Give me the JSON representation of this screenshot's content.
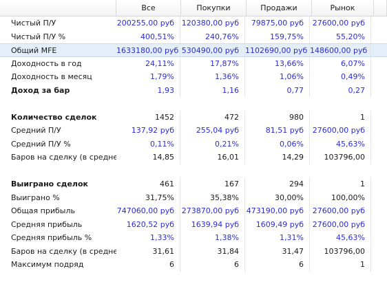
{
  "header": {
    "all": "Все",
    "buys": "Покупки",
    "sells": "Продажи",
    "market": "Рынок"
  },
  "rows": [
    {
      "label": "Чистый П/У",
      "vals": [
        "200255,00 руб",
        "120380,00 руб",
        "79875,00 руб",
        "27600,00 руб"
      ],
      "blue": true
    },
    {
      "label": "Чистый П/У %",
      "vals": [
        "400,51%",
        "240,76%",
        "159,75%",
        "55,20%"
      ],
      "blue": true
    },
    {
      "label": "Общий MFE",
      "vals": [
        "1633180,00 руб",
        "530490,00 руб",
        "1102690,00 руб",
        "148600,00 руб"
      ],
      "blue": true,
      "highlight": true
    },
    {
      "label": "Доходность в год",
      "vals": [
        "24,11%",
        "17,87%",
        "13,66%",
        "6,07%"
      ],
      "blue": true
    },
    {
      "label": "Доходность в месяц",
      "vals": [
        "1,79%",
        "1,36%",
        "1,06%",
        "0,49%"
      ],
      "blue": true
    },
    {
      "label": "Доход за бар",
      "vals": [
        "1,93",
        "1,16",
        "0,77",
        "0,27"
      ],
      "blue": true,
      "bold": true
    },
    {
      "blank": true
    },
    {
      "label": "Количество сделок",
      "vals": [
        "1452",
        "472",
        "980",
        "1"
      ],
      "bold": true
    },
    {
      "label": "Средний П/У",
      "vals": [
        "137,92 руб",
        "255,04 руб",
        "81,51 руб",
        "27600,00 руб"
      ],
      "blue": true
    },
    {
      "label": "Средний П/У %",
      "vals": [
        "0,11%",
        "0,21%",
        "0,06%",
        "45,63%"
      ],
      "blue": true
    },
    {
      "label": "Баров на сделку (в среднем)",
      "vals": [
        "14,85",
        "16,01",
        "14,29",
        "103796,00"
      ]
    },
    {
      "blank": true
    },
    {
      "label": "Выиграно сделок",
      "vals": [
        "461",
        "167",
        "294",
        "1"
      ],
      "bold": true
    },
    {
      "label": "Выиграно %",
      "vals": [
        "31,75%",
        "35,38%",
        "30,00%",
        "100,00%"
      ]
    },
    {
      "label": "Общая прибыль",
      "vals": [
        "747060,00 руб",
        "273870,00 руб",
        "473190,00 руб",
        "27600,00 руб"
      ],
      "blue": true
    },
    {
      "label": "Средняя прибыль",
      "vals": [
        "1620,52 руб",
        "1639,94 руб",
        "1609,49 руб",
        "27600,00 руб"
      ],
      "blue": true
    },
    {
      "label": "Средняя прибыль %",
      "vals": [
        "1,33%",
        "1,38%",
        "1,31%",
        "45,63%"
      ],
      "blue": true
    },
    {
      "label": "Баров на сделку (в среднем)",
      "vals": [
        "31,61",
        "31,84",
        "31,47",
        "103796,00"
      ]
    },
    {
      "label": "Максимум подряд",
      "vals": [
        "6",
        "6",
        "6",
        "1"
      ]
    }
  ]
}
